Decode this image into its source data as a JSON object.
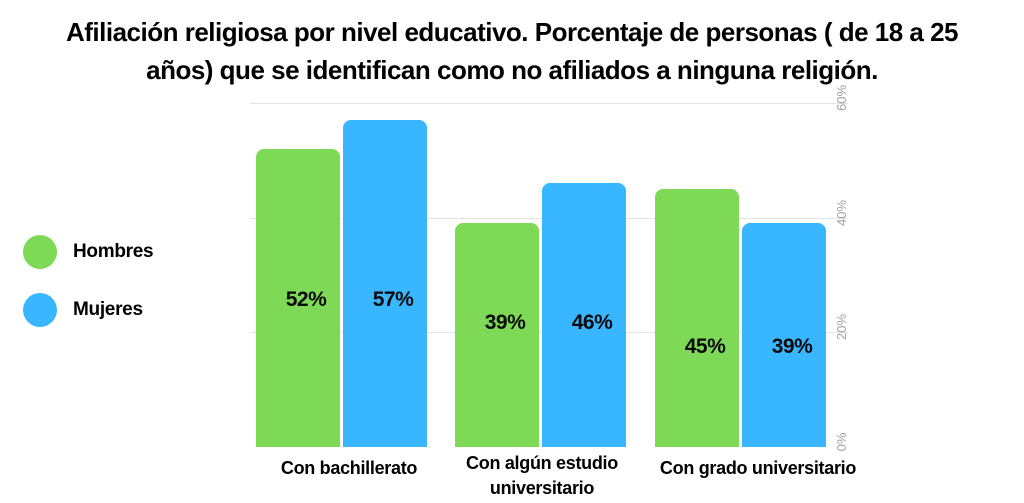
{
  "title": {
    "line1": "Afiliación religiosa por nivel educativo. Porcentaje de personas ( de 18 a 25",
    "line2": "años) que se identifican como no afiliados a ninguna religión."
  },
  "legend": {
    "items": [
      {
        "label": "Hombres",
        "color": "#7ED957"
      },
      {
        "label": "Mujeres",
        "color": "#38B6FF"
      }
    ]
  },
  "chart_data": {
    "type": "bar",
    "title": "Afiliación religiosa por nivel educativo. Porcentaje de personas ( de 18 a 25 años) que se identifican como no afiliados a ninguna religión.",
    "categories": [
      "Con bachillerato",
      "Con algún estudio universitario",
      "Con grado universitario"
    ],
    "series": [
      {
        "name": "Hombres",
        "color": "#7ED957",
        "values": [
          52,
          39,
          45
        ],
        "value_labels": [
          "52%",
          "39%",
          "45%"
        ]
      },
      {
        "name": "Mujeres",
        "color": "#38B6FF",
        "values": [
          57,
          46,
          39
        ],
        "value_labels": [
          "57%",
          "46%",
          "39%"
        ]
      }
    ],
    "xlabel": "",
    "ylabel": "",
    "y_axis": {
      "min": 0,
      "max": 60,
      "ticks": [
        0,
        20,
        40,
        60
      ],
      "tick_labels": [
        "0%",
        "20%",
        "40%",
        "60%"
      ],
      "side": "right",
      "tick_label_rotation": -90
    },
    "gridline_ticks": [
      20,
      40,
      60
    ],
    "grid": true,
    "legend_position": "left",
    "value_labels_inside_bars": true
  },
  "colors": {
    "hombres": "#7ED957",
    "mujeres": "#38B6FF",
    "gridline": "#e4e4e4",
    "tick_label": "#a2a2a2",
    "text": "#000000",
    "background": "#ffffff"
  }
}
